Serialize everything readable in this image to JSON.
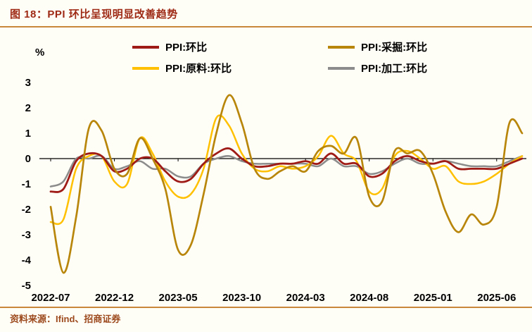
{
  "header": {
    "title": "图 18：PPI 环比呈现明显改善趋势"
  },
  "footer": {
    "source": "资料来源：Ifind、招商证券"
  },
  "colors": {
    "background": "#FFFEF6",
    "rule": "#C9873B",
    "title_text": "#9E2A15",
    "source_text": "#9C4A1E",
    "axis_text": "#000000"
  },
  "chart_data": {
    "type": "line",
    "unit": "%",
    "ylim": [
      -5,
      3
    ],
    "y_ticks": [
      3,
      2,
      1,
      0,
      -1,
      -2,
      -3,
      -4,
      -5
    ],
    "grid": false,
    "legend_position": "top",
    "x": [
      "2022-07",
      "2022-08",
      "2022-09",
      "2022-10",
      "2022-11",
      "2022-12",
      "2023-01",
      "2023-02",
      "2023-03",
      "2023-04",
      "2023-05",
      "2023-06",
      "2023-07",
      "2023-08",
      "2023-09",
      "2023-10",
      "2023-11",
      "2023-12",
      "2024-01",
      "2024-02",
      "2024-03",
      "2024-04",
      "2024-05",
      "2024-06",
      "2024-07",
      "2024-08",
      "2024-09",
      "2024-10",
      "2024-11",
      "2024-12",
      "2025-01",
      "2025-02",
      "2025-03",
      "2025-04",
      "2025-05",
      "2025-06",
      "2025-07",
      "2025-08"
    ],
    "x_tick_labels": [
      "2022-07",
      "2022-12",
      "2023-05",
      "2023-10",
      "2024-03",
      "2024-08",
      "2025-01",
      "2025-06"
    ],
    "series": [
      {
        "name": "PPI:环比",
        "color": "#9E1B17",
        "width": 2.8,
        "values": [
          -1.3,
          -1.2,
          -0.1,
          0.2,
          0.1,
          -0.5,
          -0.4,
          0.0,
          0.0,
          -0.5,
          -0.9,
          -0.8,
          -0.2,
          0.2,
          0.4,
          0.0,
          -0.3,
          -0.3,
          -0.2,
          -0.2,
          -0.1,
          -0.2,
          0.2,
          -0.2,
          -0.2,
          -0.7,
          -0.6,
          -0.1,
          0.1,
          -0.1,
          -0.2,
          -0.1,
          -0.4,
          -0.4,
          -0.4,
          -0.4,
          -0.2,
          0.0
        ]
      },
      {
        "name": "PPI:采掘:环比",
        "color": "#B8860B",
        "width": 2.7,
        "values": [
          -1.9,
          -4.5,
          -2.3,
          1.2,
          1.1,
          -0.4,
          -0.6,
          0.8,
          0.0,
          -1.2,
          -3.6,
          -3.4,
          -1.4,
          1.0,
          2.5,
          1.4,
          -0.4,
          -0.8,
          -0.5,
          -0.3,
          -0.5,
          0.3,
          0.5,
          0.2,
          0.8,
          -1.5,
          -1.7,
          0.3,
          0.2,
          0.3,
          -0.6,
          -2.1,
          -2.9,
          -2.2,
          -2.6,
          -1.9,
          1.4,
          1.0
        ]
      },
      {
        "name": "PPI:原料:环比",
        "color": "#FFC000",
        "width": 2.5,
        "values": [
          -2.5,
          -2.4,
          -0.4,
          0.1,
          0.1,
          -0.9,
          -1.0,
          0.8,
          0.2,
          -0.9,
          -1.5,
          -1.4,
          -0.4,
          1.6,
          1.3,
          0.2,
          -0.4,
          -0.5,
          -0.3,
          -0.4,
          -0.3,
          0.1,
          0.9,
          0.2,
          -0.1,
          -1.3,
          -1.2,
          0.1,
          0.3,
          0.0,
          -0.4,
          -0.3,
          -0.9,
          -1.0,
          -0.9,
          -0.6,
          -0.2,
          0.1
        ]
      },
      {
        "name": "PPI:加工:环比",
        "color": "#8C8C8C",
        "width": 2.5,
        "values": [
          -1.1,
          -0.9,
          0.0,
          0.0,
          0.1,
          -0.4,
          -0.3,
          -0.1,
          -0.4,
          -0.4,
          -0.7,
          -0.7,
          -0.2,
          0.0,
          0.1,
          -0.1,
          -0.2,
          -0.2,
          -0.2,
          -0.2,
          -0.2,
          -0.3,
          0.0,
          -0.3,
          -0.3,
          -0.6,
          -0.5,
          -0.2,
          0.0,
          -0.2,
          -0.2,
          -0.1,
          -0.2,
          -0.3,
          -0.3,
          -0.3,
          -0.1,
          0.1
        ]
      }
    ]
  }
}
